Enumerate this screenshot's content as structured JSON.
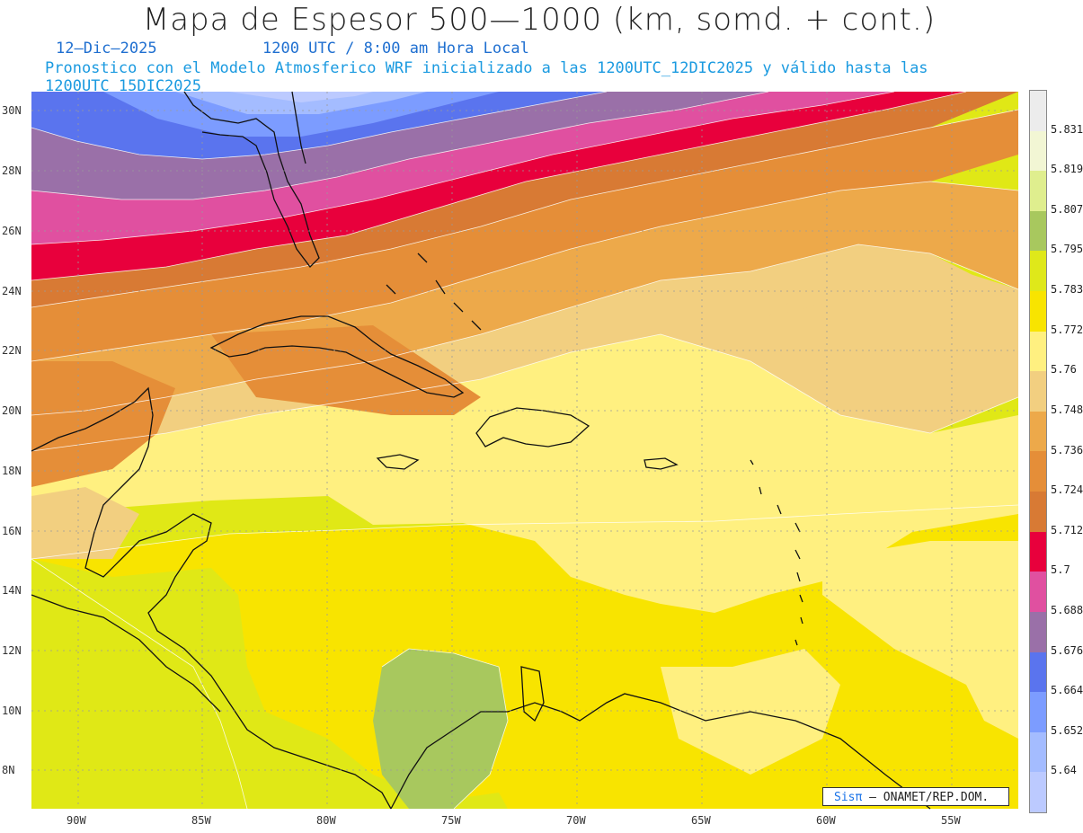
{
  "title": "Mapa de Espesor 500—1000 (km, somd. + cont.)",
  "date": "12—Dic—2025",
  "time": "1200 UTC / 8:00 am Hora Local",
  "model_line": "Pronostico con el Modelo Atmosferico WRF inicializado a las 1200UTC_12DIC2025 y válido hasta las  1200UTC_15DIC2025",
  "lat_labels": [
    "30N",
    "28N",
    "26N",
    "24N",
    "22N",
    "20N",
    "18N",
    "16N",
    "14N",
    "12N",
    "10N",
    "8N"
  ],
  "lon_labels": [
    "90W",
    "85W",
    "80W",
    "75W",
    "70W",
    "65W",
    "60W",
    "55W"
  ],
  "colorbar": {
    "values": [
      "5.831",
      "5.819",
      "5.807",
      "5.795",
      "5.783",
      "5.772",
      "5.76",
      "5.748",
      "5.736",
      "5.724",
      "5.712",
      "5.7",
      "5.688",
      "5.676",
      "5.664",
      "5.652",
      "5.64"
    ],
    "colors": [
      "#ececec",
      "#f2f6d4",
      "#dfee8e",
      "#a8c85e",
      "#dfe81a",
      "#f8e400",
      "#fff080",
      "#f2cf80",
      "#eda94a",
      "#e58e38",
      "#d87a34",
      "#e8003c",
      "#e050a0",
      "#9a70a8",
      "#5a74ee",
      "#7c9cff",
      "#a4bcff",
      "#bccaff"
    ]
  },
  "credit": {
    "brand": "Sisπ",
    "org": " — ONAMET/REP.DOM."
  }
}
